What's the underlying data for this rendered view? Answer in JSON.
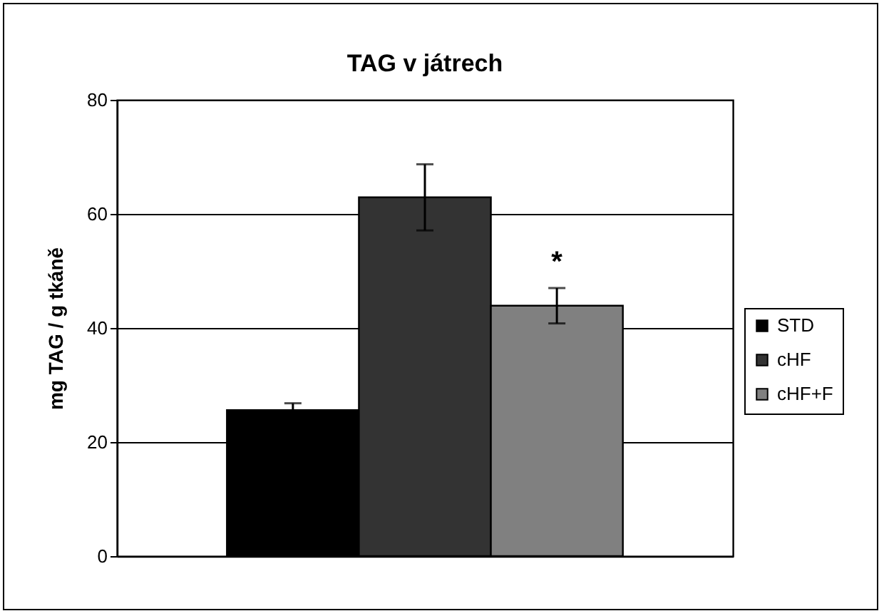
{
  "chart_data": {
    "type": "bar",
    "title": "TAG v játrech",
    "ylabel": "mg TAG / g tkáně",
    "categories": [
      null
    ],
    "series": [
      {
        "name": "STD",
        "color": "#000000",
        "values": [
          25.6
        ],
        "errors": [
          1.2
        ]
      },
      {
        "name": "cHF",
        "color": "#333333",
        "values": [
          62.9
        ],
        "errors": [
          5.8
        ]
      },
      {
        "name": "cHF+F",
        "color": "#808080",
        "values": [
          43.9
        ],
        "errors": [
          3.1
        ]
      }
    ],
    "annotations": [
      "*"
    ],
    "ylim": [
      0,
      80
    ],
    "yticks": [
      0,
      20,
      40,
      60,
      80
    ],
    "grid": "y",
    "legend": "right",
    "tick_labels": "y"
  }
}
